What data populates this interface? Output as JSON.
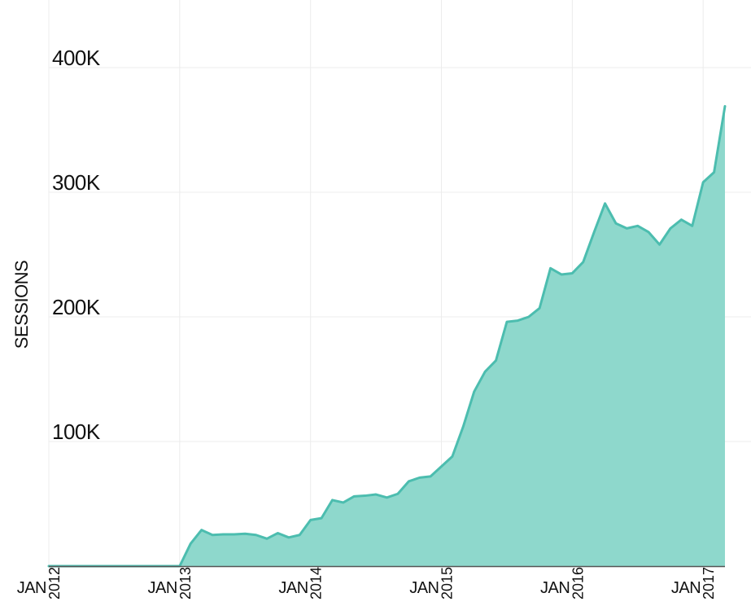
{
  "chart_data": {
    "type": "area",
    "ylabel": "SESSIONS",
    "xlabel": "",
    "title": "",
    "ylim": [
      0,
      400000
    ],
    "yticks": [
      {
        "value": 100000,
        "label": "100K"
      },
      {
        "value": 200000,
        "label": "200K"
      },
      {
        "value": 300000,
        "label": "300K"
      },
      {
        "value": 400000,
        "label": "400K"
      }
    ],
    "xticks": [
      {
        "month": "JAN",
        "year": "2012"
      },
      {
        "month": "JAN",
        "year": "2013"
      },
      {
        "month": "JAN",
        "year": "2014"
      },
      {
        "month": "JAN",
        "year": "2015"
      },
      {
        "month": "JAN",
        "year": "2016"
      },
      {
        "month": "JAN",
        "year": "2017"
      }
    ],
    "xlim": [
      "2012-01",
      "2017-03"
    ],
    "grid": true,
    "colors": {
      "fill": "#8ed8cc",
      "line": "#4cbdaf",
      "grid": "#ececec",
      "axis": "#555555"
    },
    "series": [
      {
        "x": [
          "2012-01",
          "2012-02",
          "2012-03",
          "2012-04",
          "2012-05",
          "2012-06",
          "2012-07",
          "2012-08",
          "2012-09",
          "2012-10",
          "2012-11",
          "2012-12",
          "2013-01",
          "2013-02",
          "2013-03",
          "2013-04",
          "2013-05",
          "2013-06",
          "2013-07",
          "2013-08",
          "2013-09",
          "2013-10",
          "2013-11",
          "2013-12",
          "2014-01",
          "2014-02",
          "2014-03",
          "2014-04",
          "2014-05",
          "2014-06",
          "2014-07",
          "2014-08",
          "2014-09",
          "2014-10",
          "2014-11",
          "2014-12",
          "2015-01",
          "2015-02",
          "2015-03",
          "2015-04",
          "2015-05",
          "2015-06",
          "2015-07",
          "2015-08",
          "2015-09",
          "2015-10",
          "2015-11",
          "2015-12",
          "2016-01",
          "2016-02",
          "2016-03",
          "2016-04",
          "2016-05",
          "2016-06",
          "2016-07",
          "2016-08",
          "2016-09",
          "2016-10",
          "2016-11",
          "2016-12",
          "2017-01",
          "2017-02",
          "2017-03"
        ],
        "values": [
          0,
          0,
          0,
          0,
          0,
          0,
          0,
          0,
          0,
          0,
          0,
          0,
          0,
          18000,
          29000,
          25000,
          25500,
          25500,
          26000,
          25000,
          22000,
          26500,
          23000,
          25000,
          37000,
          38500,
          53000,
          51000,
          56000,
          56500,
          57500,
          55000,
          58000,
          68000,
          71000,
          72000,
          80000,
          88000,
          112000,
          140000,
          156000,
          165000,
          196000,
          197000,
          200000,
          207000,
          239000,
          234000,
          235000,
          244000,
          268000,
          291000,
          275000,
          271000,
          273000,
          268000,
          258000,
          271000,
          278000,
          273000,
          308000,
          316000,
          369000
        ]
      }
    ]
  }
}
